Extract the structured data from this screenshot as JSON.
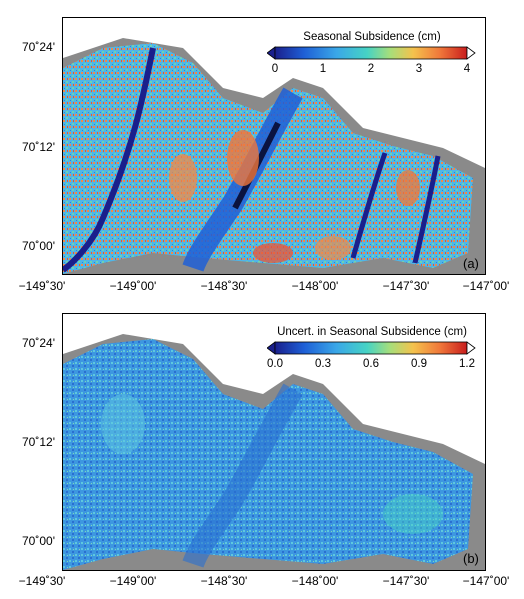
{
  "panel_a": {
    "letter": "(a)",
    "colorbar": {
      "title": "Seasonal Subsidence (cm)",
      "ticks": [
        "0",
        "1",
        "2",
        "3",
        "4"
      ],
      "min": 0,
      "max": 4
    }
  },
  "panel_b": {
    "letter": "(b)",
    "colorbar": {
      "title": "Uncert. in Seasonal Subsidence (cm)",
      "ticks": [
        "0.0",
        "0.3",
        "0.6",
        "0.9",
        "1.2"
      ],
      "min": 0.0,
      "max": 1.2
    }
  },
  "lat_labels": [
    "70˚24'",
    "70˚12'",
    "70˚00'"
  ],
  "lon_labels": [
    "−149˚30'",
    "−149˚00'",
    "−148˚30'",
    "−148˚00'",
    "−147˚30'",
    "−147˚00'"
  ],
  "colors": {
    "land_no_data": "#8a8a8a",
    "ocean": "#ffffff",
    "colormap": [
      "#1a1f8c",
      "#1e5fd6",
      "#3aa7e8",
      "#46d3c4",
      "#a7de7a",
      "#f4c24d",
      "#f0773a",
      "#c81d1d"
    ]
  }
}
